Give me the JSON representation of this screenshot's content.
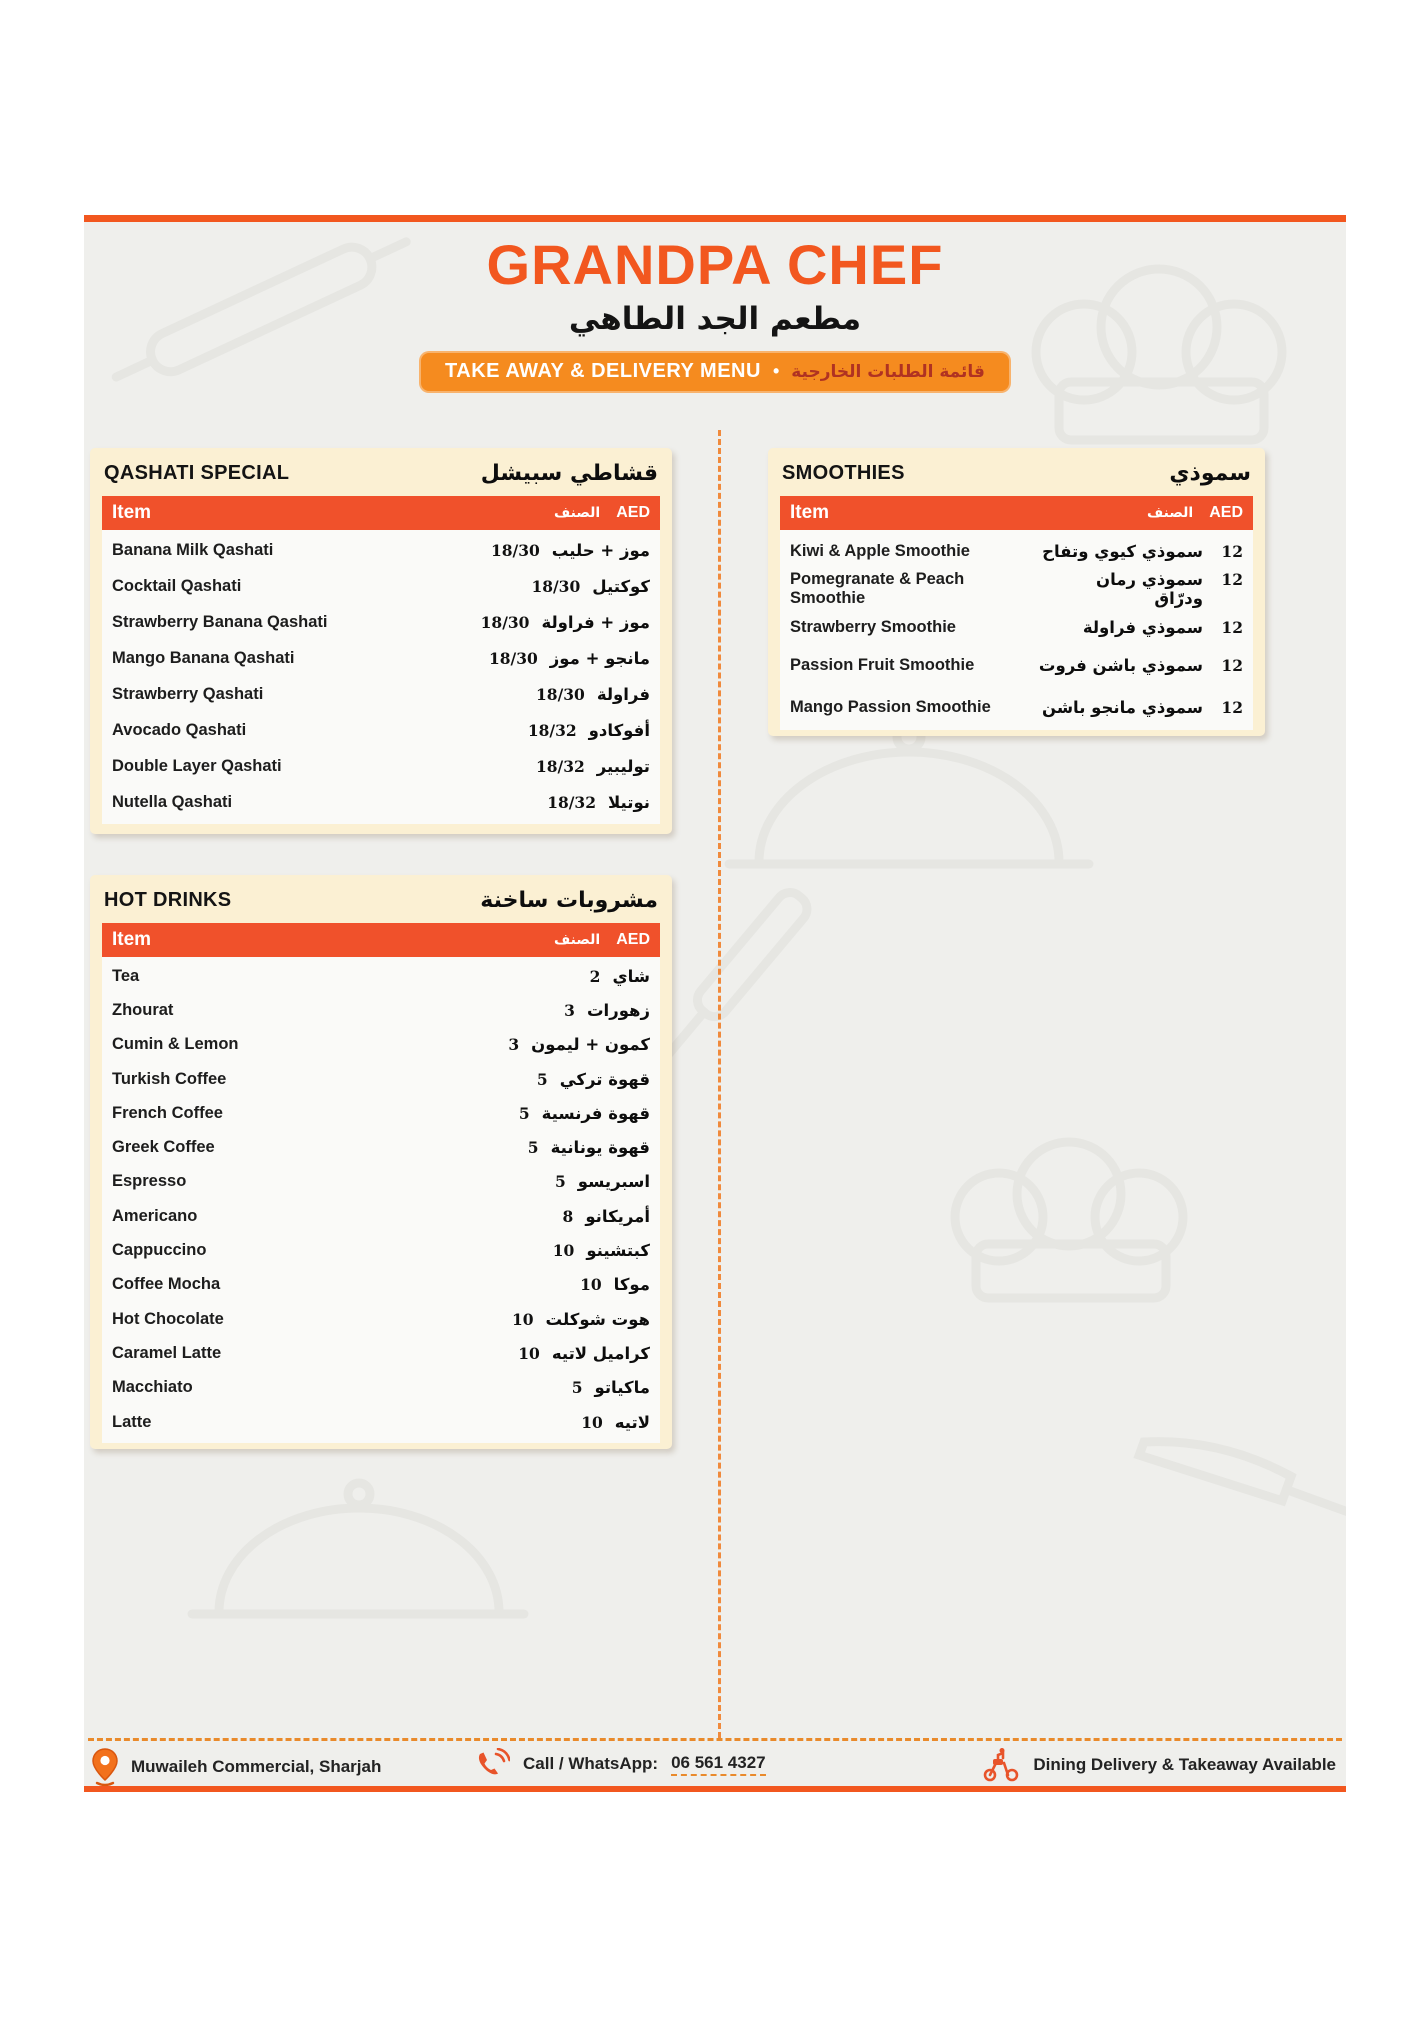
{
  "header": {
    "title": "GRANDPA CHEF",
    "subtitle_ar": "مطعم الجد الطاهي",
    "banner_en": "TAKE AWAY & DELIVERY MENU",
    "banner_sep": "•",
    "banner_ar": "قائمة الطلبات الخارجية"
  },
  "columns_header": {
    "item": "Item",
    "name_ar": "الصنف",
    "aed": "AED"
  },
  "sections": [
    {
      "title_en": "QASHATI SPECIAL",
      "title_ar": "قشاطي سبيشل",
      "price_position": "before",
      "items": [
        {
          "en": "Banana Milk Qashati",
          "ar": "موز + حليب",
          "price": "18/30"
        },
        {
          "en": "Cocktail Qashati",
          "ar": "كوكتيل",
          "price": "18/30"
        },
        {
          "en": "Strawberry Banana Qashati",
          "ar": "موز + فراولة",
          "price": "18/30"
        },
        {
          "en": "Mango Banana Qashati",
          "ar": "مانجو + موز",
          "price": "18/30"
        },
        {
          "en": "Strawberry Qashati",
          "ar": "فراولة",
          "price": "18/30"
        },
        {
          "en": "Avocado Qashati",
          "ar": "أفوكادو",
          "price": "18/32"
        },
        {
          "en": "Double Layer Qashati",
          "ar": "توليبير",
          "price": "18/32"
        },
        {
          "en": "Nutella Qashati",
          "ar": "نوتيلا",
          "price": "18/32"
        }
      ]
    },
    {
      "title_en": "HOT DRINKS",
      "title_ar": "مشروبات ساخنة",
      "price_position": "before",
      "items": [
        {
          "en": "Tea",
          "ar": "شاي",
          "price": "2"
        },
        {
          "en": "Zhourat",
          "ar": "زهورات",
          "price": "3"
        },
        {
          "en": "Cumin & Lemon",
          "ar": "كمون + ليمون",
          "price": "3"
        },
        {
          "en": "Turkish Coffee",
          "ar": "قهوة تركي",
          "price": "5"
        },
        {
          "en": "French Coffee",
          "ar": "قهوة فرنسية",
          "price": "5"
        },
        {
          "en": "Greek Coffee",
          "ar": "قهوة يونانية",
          "price": "5"
        },
        {
          "en": "Espresso",
          "ar": "اسبريسو",
          "price": "5"
        },
        {
          "en": "Americano",
          "ar": "أمريكانو",
          "price": "8"
        },
        {
          "en": "Cappuccino",
          "ar": "كبتشينو",
          "price": "10"
        },
        {
          "en": "Coffee Mocha",
          "ar": "موكا",
          "price": "10"
        },
        {
          "en": "Hot Chocolate",
          "ar": "هوت شوكلت",
          "price": "10"
        },
        {
          "en": "Caramel Latte",
          "ar": "كراميل لاتيه",
          "price": "10"
        },
        {
          "en": "Macchiato",
          "ar": "ماكياتو",
          "price": "5"
        },
        {
          "en": "Latte",
          "ar": "لاتيه",
          "price": "10"
        }
      ]
    },
    {
      "title_en": "SMOOTHIES",
      "title_ar": "سموذي",
      "price_position": "after",
      "items": [
        {
          "en": "Kiwi & Apple Smoothie",
          "ar": "سموذي كيوي وتفاح",
          "price": "12"
        },
        {
          "en": "Pomegranate & Peach Smoothie",
          "ar": "سموذي رمان ودرّاق",
          "price": "12"
        },
        {
          "en": "Strawberry Smoothie",
          "ar": "سموذي فراولة",
          "price": "12"
        },
        {
          "en": "Passion Fruit Smoothie",
          "ar": "سموذي باشن فروت",
          "price": "12"
        },
        {
          "en": "Mango Passion Smoothie",
          "ar": "سموذي مانجو باشن",
          "price": "12"
        }
      ]
    }
  ],
  "footer": {
    "location": "Muwaileh Commercial, Sharjah",
    "call_label": "Call / WhatsApp:",
    "phone": "06 561 4327",
    "delivery": "Dining Delivery & Takeaway Available",
    "icons": [
      "location-pin-icon",
      "phone-icon",
      "delivery-scooter-icon"
    ]
  },
  "colors": {
    "accent_orange": "#F2571F",
    "bar_orange": "#F0512B",
    "banner_orange": "#F58B1F",
    "banner_arabic_red": "#B03222",
    "panel_cream": "#FBF0D3",
    "page_grey": "#EFEFEC"
  }
}
